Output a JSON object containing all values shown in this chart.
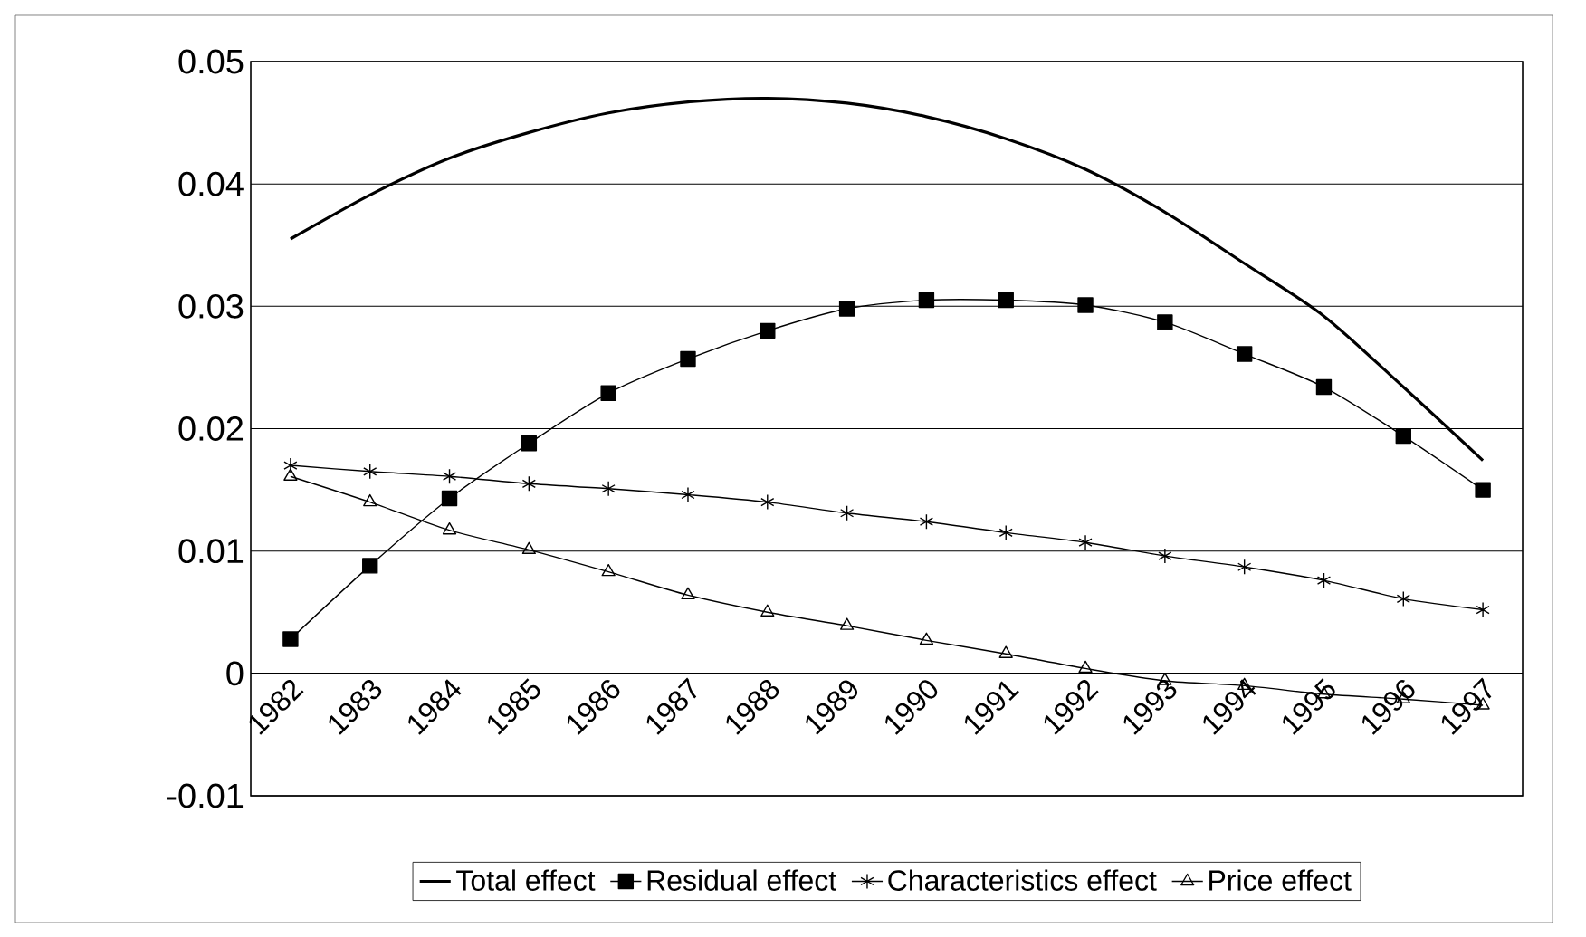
{
  "chart_data": {
    "type": "line",
    "categories": [
      "1982",
      "1983",
      "1984",
      "1985",
      "1986",
      "1987",
      "1988",
      "1989",
      "1990",
      "1991",
      "1992",
      "1993",
      "1994",
      "1995",
      "1996",
      "1997"
    ],
    "series": [
      {
        "name": "Total effect",
        "color": "#000000",
        "marker": "none",
        "values": [
          0.0355,
          0.0391,
          0.0421,
          0.0442,
          0.0458,
          0.0467,
          0.047,
          0.0466,
          0.0455,
          0.0437,
          0.0412,
          0.0377,
          0.0335,
          0.0292,
          0.0234,
          0.0174
        ]
      },
      {
        "name": "Residual effect",
        "color": "#000000",
        "marker": "square",
        "values": [
          0.0028,
          0.0088,
          0.0143,
          0.0188,
          0.0229,
          0.0257,
          0.028,
          0.0298,
          0.0305,
          0.0305,
          0.0301,
          0.0287,
          0.0261,
          0.0234,
          0.0194,
          0.015
        ]
      },
      {
        "name": "Characteristics effect",
        "color": "#000000",
        "marker": "cross",
        "values": [
          0.017,
          0.0165,
          0.0161,
          0.0155,
          0.0151,
          0.0146,
          0.014,
          0.0131,
          0.0124,
          0.0115,
          0.0107,
          0.0096,
          0.0087,
          0.0076,
          0.0061,
          0.0052
        ]
      },
      {
        "name": "Price effect",
        "color": "#000000",
        "marker": "triangle",
        "values": [
          0.0161,
          0.014,
          0.0117,
          0.0101,
          0.0083,
          0.0064,
          0.005,
          0.0039,
          0.0027,
          0.0016,
          0.0004,
          -0.0006,
          -0.001,
          -0.0017,
          -0.0021,
          -0.0026
        ]
      }
    ],
    "ylim": [
      -0.01,
      0.05
    ],
    "yticks": [
      -0.01,
      0,
      0.01,
      0.02,
      0.03,
      0.04,
      0.05
    ],
    "grid": "y",
    "legend": "bottom"
  }
}
